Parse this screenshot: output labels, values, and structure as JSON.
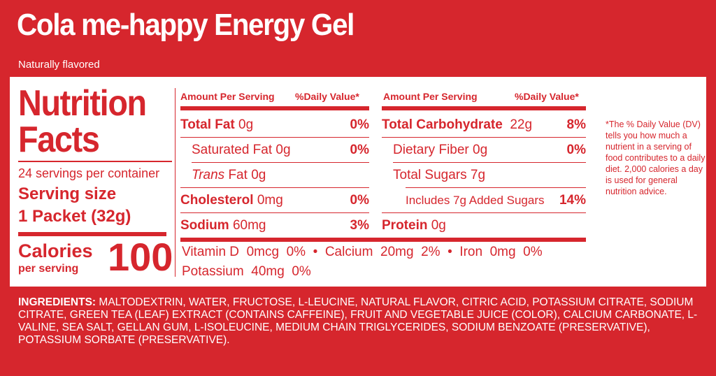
{
  "product": {
    "title": "Cola me-happy Energy Gel",
    "subtitle": "Naturally flavored"
  },
  "facts": {
    "heading_line1": "Nutrition",
    "heading_line2": "Facts",
    "servings": "24 servings per container",
    "serving_size_label": "Serving size",
    "serving_size_value": "1 Packet (32g)",
    "calories_label": "Calories",
    "calories_sub": "per serving",
    "calories_value": "100"
  },
  "left_table": {
    "amount_header": "Amount Per Serving",
    "dv_header": "%Daily Value*",
    "total_fat": {
      "label": "Total Fat",
      "amount": "0g",
      "dv": "0%"
    },
    "saturated_fat": {
      "label": "Saturated Fat",
      "amount": "0g",
      "dv": "0%"
    },
    "trans_fat": {
      "label_italic": "Trans",
      "label": "Fat",
      "amount": "0g"
    },
    "cholesterol": {
      "label": "Cholesterol",
      "amount": "0mg",
      "dv": "0%"
    },
    "sodium": {
      "label": "Sodium",
      "amount": "60mg",
      "dv": "3%"
    }
  },
  "right_table": {
    "amount_header": "Amount Per Serving",
    "dv_header": "%Daily Value*",
    "total_carb": {
      "label": "Total Carbohydrate",
      "amount": "22g",
      "dv": "8%"
    },
    "dietary_fiber": {
      "label": "Dietary Fiber",
      "amount": "0g",
      "dv": "0%"
    },
    "total_sugars": {
      "label": "Total Sugars",
      "amount": "7g"
    },
    "added_sugars": {
      "label": "Includes 7g Added Sugars",
      "dv": "14%"
    },
    "protein": {
      "label": "Protein",
      "amount": "0g"
    }
  },
  "vitamins": {
    "line1": "Vitamin D  0mcg  0%  •  Calcium  20mg  2%  •  Iron  0mg  0%",
    "line2": "Potassium  40mg  0%"
  },
  "footnote": "*The % Daily Value (DV) tells you how much a nutrient in a serving of food contributes to a daily diet. 2,000 calories a day is used for general nutrition advice.",
  "ingredients": {
    "label": "INGREDIENTS:",
    "text": "MALTODEXTRIN, WATER, FRUCTOSE, L-LEUCINE, NATURAL FLAVOR, CITRIC ACID, POTASSIUM CITRATE, SODIUM CITRATE, GREEN TEA (LEAF) EXTRACT (CONTAINS CAFFEINE), FRUIT AND VEGETABLE JUICE (COLOR), CALCIUM CARBONATE, L-VALINE, SEA SALT, GELLAN GUM, L-ISOLEUCINE, MEDIUM CHAIN TRIGLYCERIDES, SODIUM BENZOATE (PRESERVATIVE), POTASSIUM SORBATE (PRESERVATIVE)."
  },
  "colors": {
    "brand_red": "#d6262d",
    "panel_bg": "#ffffff"
  }
}
